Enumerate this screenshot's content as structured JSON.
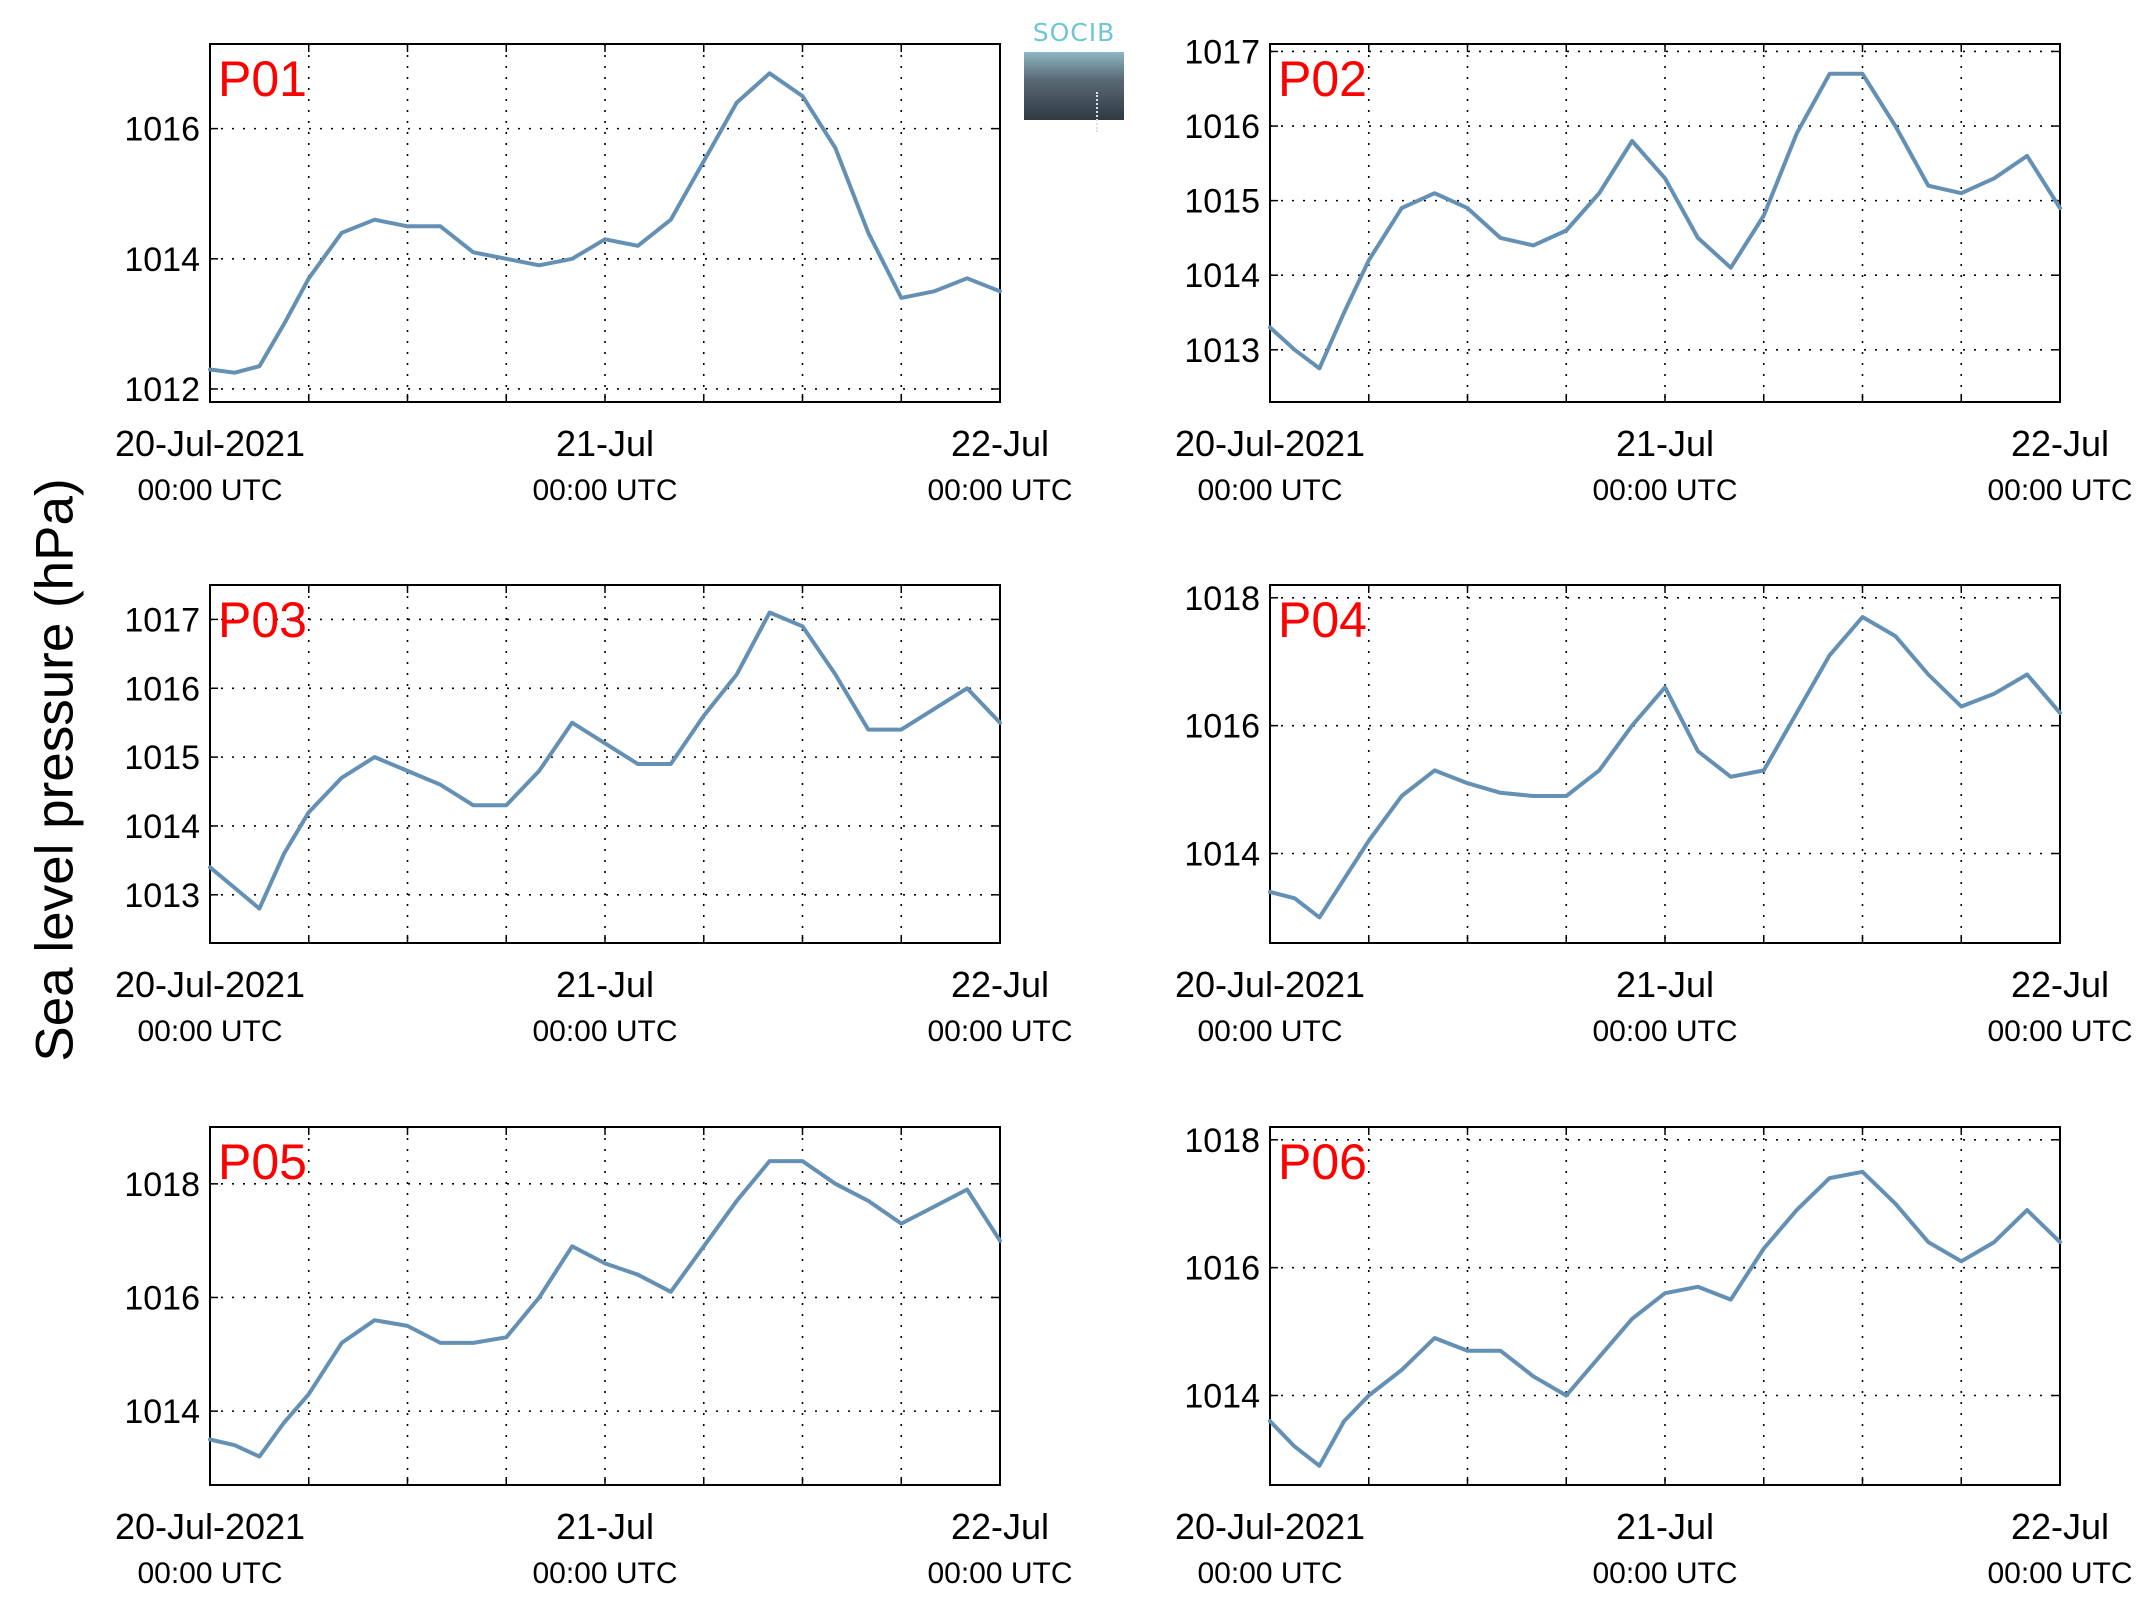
{
  "figure": {
    "ylabel": "Sea level pressure (hPa)",
    "logo_text": "SOCIB",
    "line_color": "#6490b4",
    "panel_label_color": "#ff0000"
  },
  "chart_data": [
    {
      "type": "line",
      "title": "P01",
      "ylabel": "Sea level pressure (hPa)",
      "xlim": [
        "2021-07-20T00:00",
        "2021-07-22T00:00"
      ],
      "ylim": [
        1011.8,
        1017.3
      ],
      "yticks": [
        1012,
        1014,
        1016
      ],
      "xtick_labels": [
        [
          "20-Jul-2021",
          "00:00 UTC"
        ],
        [
          "21-Jul",
          "00:00 UTC"
        ],
        [
          "22-Jul",
          "00:00 UTC"
        ]
      ],
      "grid": true,
      "series": [
        {
          "x": [
            "2021-07-20T00:00",
            "2021-07-20T01:30",
            "2021-07-20T03:00",
            "2021-07-20T04:30",
            "2021-07-20T06:00",
            "2021-07-20T08:00",
            "2021-07-20T10:00",
            "2021-07-20T12:00",
            "2021-07-20T14:00",
            "2021-07-20T16:00",
            "2021-07-20T18:00",
            "2021-07-20T20:00",
            "2021-07-20T22:00",
            "2021-07-21T00:00",
            "2021-07-21T02:00",
            "2021-07-21T04:00",
            "2021-07-21T06:00",
            "2021-07-21T08:00",
            "2021-07-21T10:00",
            "2021-07-21T12:00",
            "2021-07-21T14:00",
            "2021-07-21T16:00",
            "2021-07-21T18:00",
            "2021-07-21T20:00",
            "2021-07-21T22:00",
            "2021-07-22T00:00"
          ],
          "y": [
            1012.3,
            1012.25,
            1012.35,
            1013.0,
            1013.7,
            1014.4,
            1014.6,
            1014.5,
            1014.5,
            1014.1,
            1014.0,
            1013.9,
            1014.0,
            1014.3,
            1014.2,
            1014.6,
            1015.5,
            1016.4,
            1016.85,
            1016.5,
            1015.7,
            1014.4,
            1013.4,
            1013.5,
            1013.7,
            1013.5
          ]
        }
      ]
    },
    {
      "type": "line",
      "title": "P02",
      "ylabel": "Sea level pressure (hPa)",
      "xlim": [
        "2021-07-20T00:00",
        "2021-07-22T00:00"
      ],
      "ylim": [
        1012.3,
        1017.1
      ],
      "yticks": [
        1013,
        1014,
        1015,
        1016,
        1017
      ],
      "xtick_labels": [
        [
          "20-Jul-2021",
          "00:00 UTC"
        ],
        [
          "21-Jul",
          "00:00 UTC"
        ],
        [
          "22-Jul",
          "00:00 UTC"
        ]
      ],
      "grid": true,
      "series": [
        {
          "x": [
            "2021-07-20T00:00",
            "2021-07-20T01:30",
            "2021-07-20T03:00",
            "2021-07-20T04:30",
            "2021-07-20T06:00",
            "2021-07-20T08:00",
            "2021-07-20T10:00",
            "2021-07-20T12:00",
            "2021-07-20T14:00",
            "2021-07-20T16:00",
            "2021-07-20T18:00",
            "2021-07-20T20:00",
            "2021-07-20T22:00",
            "2021-07-21T00:00",
            "2021-07-21T02:00",
            "2021-07-21T04:00",
            "2021-07-21T06:00",
            "2021-07-21T08:00",
            "2021-07-21T10:00",
            "2021-07-21T12:00",
            "2021-07-21T14:00",
            "2021-07-21T16:00",
            "2021-07-21T18:00",
            "2021-07-21T20:00",
            "2021-07-21T22:00",
            "2021-07-22T00:00"
          ],
          "y": [
            1013.3,
            1013.0,
            1012.75,
            1013.5,
            1014.2,
            1014.9,
            1015.1,
            1014.9,
            1014.5,
            1014.4,
            1014.6,
            1015.1,
            1015.8,
            1015.3,
            1014.5,
            1014.1,
            1014.8,
            1015.9,
            1016.7,
            1016.7,
            1016.0,
            1015.2,
            1015.1,
            1015.3,
            1015.6,
            1014.9
          ]
        }
      ]
    },
    {
      "type": "line",
      "title": "P03",
      "ylabel": "Sea level pressure (hPa)",
      "xlim": [
        "2021-07-20T00:00",
        "2021-07-22T00:00"
      ],
      "ylim": [
        1012.3,
        1017.5
      ],
      "yticks": [
        1013,
        1014,
        1015,
        1016,
        1017
      ],
      "xtick_labels": [
        [
          "20-Jul-2021",
          "00:00 UTC"
        ],
        [
          "21-Jul",
          "00:00 UTC"
        ],
        [
          "22-Jul",
          "00:00 UTC"
        ]
      ],
      "grid": true,
      "series": [
        {
          "x": [
            "2021-07-20T00:00",
            "2021-07-20T01:30",
            "2021-07-20T03:00",
            "2021-07-20T04:30",
            "2021-07-20T06:00",
            "2021-07-20T08:00",
            "2021-07-20T10:00",
            "2021-07-20T12:00",
            "2021-07-20T14:00",
            "2021-07-20T16:00",
            "2021-07-20T18:00",
            "2021-07-20T20:00",
            "2021-07-20T22:00",
            "2021-07-21T00:00",
            "2021-07-21T02:00",
            "2021-07-21T04:00",
            "2021-07-21T06:00",
            "2021-07-21T08:00",
            "2021-07-21T10:00",
            "2021-07-21T12:00",
            "2021-07-21T14:00",
            "2021-07-21T16:00",
            "2021-07-21T18:00",
            "2021-07-21T20:00",
            "2021-07-21T22:00",
            "2021-07-22T00:00"
          ],
          "y": [
            1013.4,
            1013.1,
            1012.8,
            1013.6,
            1014.2,
            1014.7,
            1015.0,
            1014.8,
            1014.6,
            1014.3,
            1014.3,
            1014.8,
            1015.5,
            1015.2,
            1014.9,
            1014.9,
            1015.6,
            1016.2,
            1017.1,
            1016.9,
            1016.2,
            1015.4,
            1015.4,
            1015.7,
            1016.0,
            1015.5
          ]
        }
      ]
    },
    {
      "type": "line",
      "title": "P04",
      "ylabel": "Sea level pressure (hPa)",
      "xlim": [
        "2021-07-20T00:00",
        "2021-07-22T00:00"
      ],
      "ylim": [
        1012.6,
        1018.2
      ],
      "yticks": [
        1014,
        1016,
        1018
      ],
      "xtick_labels": [
        [
          "20-Jul-2021",
          "00:00 UTC"
        ],
        [
          "21-Jul",
          "00:00 UTC"
        ],
        [
          "22-Jul",
          "00:00 UTC"
        ]
      ],
      "grid": true,
      "series": [
        {
          "x": [
            "2021-07-20T00:00",
            "2021-07-20T01:30",
            "2021-07-20T03:00",
            "2021-07-20T04:30",
            "2021-07-20T06:00",
            "2021-07-20T08:00",
            "2021-07-20T10:00",
            "2021-07-20T12:00",
            "2021-07-20T14:00",
            "2021-07-20T16:00",
            "2021-07-20T18:00",
            "2021-07-20T20:00",
            "2021-07-20T22:00",
            "2021-07-21T00:00",
            "2021-07-21T02:00",
            "2021-07-21T04:00",
            "2021-07-21T06:00",
            "2021-07-21T08:00",
            "2021-07-21T10:00",
            "2021-07-21T12:00",
            "2021-07-21T14:00",
            "2021-07-21T16:00",
            "2021-07-21T18:00",
            "2021-07-21T20:00",
            "2021-07-21T22:00",
            "2021-07-22T00:00"
          ],
          "y": [
            1013.4,
            1013.3,
            1013.0,
            1013.6,
            1014.2,
            1014.9,
            1015.3,
            1015.1,
            1014.95,
            1014.9,
            1014.9,
            1015.3,
            1016.0,
            1016.6,
            1015.6,
            1015.2,
            1015.3,
            1016.2,
            1017.1,
            1017.7,
            1017.4,
            1016.8,
            1016.3,
            1016.5,
            1016.8,
            1016.2
          ]
        }
      ]
    },
    {
      "type": "line",
      "title": "P05",
      "ylabel": "Sea level pressure (hPa)",
      "xlim": [
        "2021-07-20T00:00",
        "2021-07-22T00:00"
      ],
      "ylim": [
        1012.7,
        1019.0
      ],
      "yticks": [
        1014,
        1016,
        1018
      ],
      "xtick_labels": [
        [
          "20-Jul-2021",
          "00:00 UTC"
        ],
        [
          "21-Jul",
          "00:00 UTC"
        ],
        [
          "22-Jul",
          "00:00 UTC"
        ]
      ],
      "grid": true,
      "series": [
        {
          "x": [
            "2021-07-20T00:00",
            "2021-07-20T01:30",
            "2021-07-20T03:00",
            "2021-07-20T04:30",
            "2021-07-20T06:00",
            "2021-07-20T08:00",
            "2021-07-20T10:00",
            "2021-07-20T12:00",
            "2021-07-20T14:00",
            "2021-07-20T16:00",
            "2021-07-20T18:00",
            "2021-07-20T20:00",
            "2021-07-20T22:00",
            "2021-07-21T00:00",
            "2021-07-21T02:00",
            "2021-07-21T04:00",
            "2021-07-21T06:00",
            "2021-07-21T08:00",
            "2021-07-21T10:00",
            "2021-07-21T12:00",
            "2021-07-21T14:00",
            "2021-07-21T16:00",
            "2021-07-21T18:00",
            "2021-07-21T20:00",
            "2021-07-21T22:00",
            "2021-07-22T00:00"
          ],
          "y": [
            1013.5,
            1013.4,
            1013.2,
            1013.8,
            1014.3,
            1015.2,
            1015.6,
            1015.5,
            1015.2,
            1015.2,
            1015.3,
            1016.0,
            1016.9,
            1016.6,
            1016.4,
            1016.1,
            1016.9,
            1017.7,
            1018.4,
            1018.4,
            1018.0,
            1017.7,
            1017.3,
            1017.6,
            1017.9,
            1017.0
          ]
        }
      ]
    },
    {
      "type": "line",
      "title": "P06",
      "ylabel": "Sea level pressure (hPa)",
      "xlim": [
        "2021-07-20T00:00",
        "2021-07-22T00:00"
      ],
      "ylim": [
        1012.6,
        1018.2
      ],
      "yticks": [
        1014,
        1016,
        1018
      ],
      "xtick_labels": [
        [
          "20-Jul-2021",
          "00:00 UTC"
        ],
        [
          "21-Jul",
          "00:00 UTC"
        ],
        [
          "22-Jul",
          "00:00 UTC"
        ]
      ],
      "grid": true,
      "series": [
        {
          "x": [
            "2021-07-20T00:00",
            "2021-07-20T01:30",
            "2021-07-20T03:00",
            "2021-07-20T04:30",
            "2021-07-20T06:00",
            "2021-07-20T08:00",
            "2021-07-20T10:00",
            "2021-07-20T12:00",
            "2021-07-20T14:00",
            "2021-07-20T16:00",
            "2021-07-20T18:00",
            "2021-07-20T20:00",
            "2021-07-20T22:00",
            "2021-07-21T00:00",
            "2021-07-21T02:00",
            "2021-07-21T04:00",
            "2021-07-21T06:00",
            "2021-07-21T08:00",
            "2021-07-21T10:00",
            "2021-07-21T12:00",
            "2021-07-21T14:00",
            "2021-07-21T16:00",
            "2021-07-21T18:00",
            "2021-07-21T20:00",
            "2021-07-21T22:00",
            "2021-07-22T00:00"
          ],
          "y": [
            1013.6,
            1013.2,
            1012.9,
            1013.6,
            1014.0,
            1014.4,
            1014.9,
            1014.7,
            1014.7,
            1014.3,
            1014.0,
            1014.6,
            1015.2,
            1015.6,
            1015.7,
            1015.5,
            1016.3,
            1016.9,
            1017.4,
            1017.5,
            1017.0,
            1016.4,
            1016.1,
            1016.4,
            1016.9,
            1016.4
          ]
        }
      ]
    }
  ]
}
